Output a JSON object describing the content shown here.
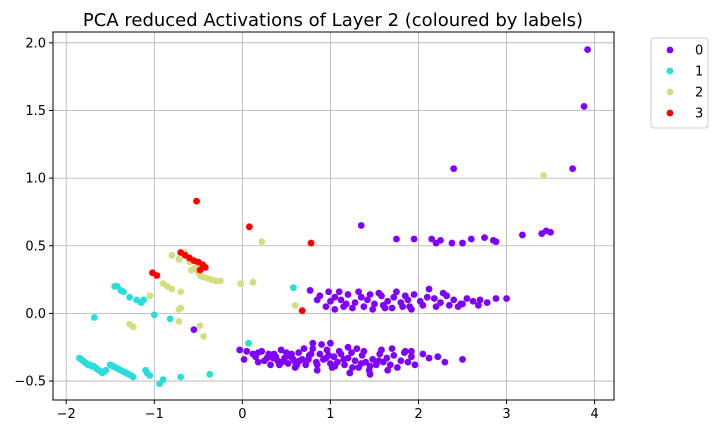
{
  "chart_data": {
    "type": "scatter",
    "title": "PCA reduced Activations of Layer 2 (coloured by labels)",
    "xlabel": "",
    "ylabel": "",
    "xlim": [
      -2.15,
      4.22
    ],
    "ylim": [
      -0.64,
      2.08
    ],
    "xticks": [
      -2,
      -1,
      0,
      1,
      2,
      3,
      4
    ],
    "yticks": [
      -0.5,
      0.0,
      0.5,
      1.0,
      1.5,
      2.0
    ],
    "xtick_labels": [
      "−2",
      "−1",
      "0",
      "1",
      "2",
      "3",
      "4"
    ],
    "ytick_labels": [
      "−0.5",
      "0.0",
      "0.5",
      "1.0",
      "1.5",
      "2.0"
    ],
    "grid": true,
    "legend_position": "outside-top-right",
    "series": [
      {
        "name": "0",
        "color": "#8000ff",
        "points": [
          [
            3.92,
            1.95
          ],
          [
            3.88,
            1.53
          ],
          [
            2.4,
            1.07
          ],
          [
            3.75,
            1.07
          ],
          [
            1.35,
            0.65
          ],
          [
            1.75,
            0.55
          ],
          [
            1.95,
            0.55
          ],
          [
            2.15,
            0.55
          ],
          [
            2.2,
            0.52
          ],
          [
            2.25,
            0.54
          ],
          [
            2.38,
            0.52
          ],
          [
            2.5,
            0.52
          ],
          [
            2.6,
            0.55
          ],
          [
            2.75,
            0.56
          ],
          [
            2.85,
            0.54
          ],
          [
            2.88,
            0.53
          ],
          [
            3.18,
            0.58
          ],
          [
            3.4,
            0.59
          ],
          [
            3.45,
            0.61
          ],
          [
            3.5,
            0.6
          ],
          [
            0.77,
            0.17
          ],
          [
            0.98,
            0.16
          ],
          [
            1.05,
            0.12
          ],
          [
            1.12,
            0.1
          ],
          [
            1.2,
            0.14
          ],
          [
            1.28,
            0.08
          ],
          [
            1.35,
            0.12
          ],
          [
            1.42,
            0.1
          ],
          [
            1.5,
            0.07
          ],
          [
            1.58,
            0.13
          ],
          [
            1.65,
            0.09
          ],
          [
            1.72,
            0.12
          ],
          [
            1.8,
            0.08
          ],
          [
            1.88,
            0.1
          ],
          [
            1.95,
            0.14
          ],
          [
            2.02,
            0.09
          ],
          [
            2.1,
            0.12
          ],
          [
            2.18,
            0.11
          ],
          [
            2.25,
            0.08
          ],
          [
            2.32,
            0.13
          ],
          [
            2.4,
            0.1
          ],
          [
            2.48,
            0.07
          ],
          [
            2.55,
            0.11
          ],
          [
            2.62,
            0.09
          ],
          [
            2.7,
            0.1
          ],
          [
            2.78,
            0.08
          ],
          [
            2.88,
            0.11
          ],
          [
            3.0,
            0.11
          ],
          [
            0.95,
            0.05
          ],
          [
            1.05,
            0.03
          ],
          [
            1.15,
            0.05
          ],
          [
            1.25,
            0.04
          ],
          [
            1.38,
            0.05
          ],
          [
            1.48,
            0.03
          ],
          [
            1.6,
            0.06
          ],
          [
            1.7,
            0.04
          ],
          [
            1.82,
            0.05
          ],
          [
            1.92,
            0.03
          ],
          [
            2.05,
            0.06
          ],
          [
            2.2,
            0.05
          ],
          [
            2.35,
            0.06
          ],
          [
            2.5,
            0.07
          ],
          [
            0.85,
            0.1
          ],
          [
            1.0,
            0.09
          ],
          [
            1.18,
            0.07
          ],
          [
            1.32,
            0.16
          ],
          [
            1.55,
            0.15
          ],
          [
            1.75,
            0.16
          ],
          [
            1.9,
            0.05
          ],
          [
            2.12,
            0.18
          ],
          [
            2.28,
            0.15
          ],
          [
            0.88,
            0.13
          ],
          [
            1.62,
            0.04
          ],
          [
            1.85,
            0.13
          ],
          [
            2.45,
            0.05
          ],
          [
            2.68,
            0.06
          ],
          [
            1.1,
            0.16
          ],
          [
            1.45,
            0.14
          ],
          [
            -0.03,
            -0.27
          ],
          [
            0.02,
            -0.34
          ],
          [
            0.12,
            -0.3
          ],
          [
            0.18,
            -0.36
          ],
          [
            0.22,
            -0.28
          ],
          [
            0.28,
            -0.33
          ],
          [
            0.32,
            -0.38
          ],
          [
            0.36,
            -0.3
          ],
          [
            0.4,
            -0.35
          ],
          [
            0.44,
            -0.27
          ],
          [
            0.48,
            -0.33
          ],
          [
            0.52,
            -0.37
          ],
          [
            0.56,
            -0.3
          ],
          [
            0.6,
            -0.36
          ],
          [
            0.64,
            -0.29
          ],
          [
            0.68,
            -0.34
          ],
          [
            0.72,
            -0.38
          ],
          [
            0.76,
            -0.31
          ],
          [
            0.8,
            -0.26
          ],
          [
            0.84,
            -0.36
          ],
          [
            0.88,
            -0.3
          ],
          [
            0.92,
            -0.34
          ],
          [
            0.96,
            -0.27
          ],
          [
            1.0,
            -0.37
          ],
          [
            1.04,
            -0.32
          ],
          [
            1.08,
            -0.36
          ],
          [
            1.12,
            -0.3
          ],
          [
            1.16,
            -0.38
          ],
          [
            1.2,
            -0.33
          ],
          [
            1.24,
            -0.29
          ],
          [
            1.28,
            -0.35
          ],
          [
            1.32,
            -0.4
          ],
          [
            1.36,
            -0.31
          ],
          [
            1.4,
            -0.36
          ],
          [
            1.44,
            -0.42
          ],
          [
            1.48,
            -0.34
          ],
          [
            1.52,
            -0.38
          ],
          [
            1.56,
            -0.3
          ],
          [
            1.6,
            -0.36
          ],
          [
            1.64,
            -0.33
          ],
          [
            1.68,
            -0.38
          ],
          [
            1.72,
            -0.31
          ],
          [
            1.76,
            -0.4
          ],
          [
            1.8,
            -0.35
          ],
          [
            1.84,
            -0.29
          ],
          [
            1.88,
            -0.36
          ],
          [
            1.92,
            -0.32
          ],
          [
            1.96,
            -0.38
          ],
          [
            2.05,
            -0.3
          ],
          [
            2.12,
            -0.33
          ],
          [
            2.22,
            -0.32
          ],
          [
            2.3,
            -0.36
          ],
          [
            2.5,
            -0.34
          ],
          [
            0.15,
            -0.32
          ],
          [
            0.25,
            -0.35
          ],
          [
            0.35,
            -0.33
          ],
          [
            0.45,
            -0.36
          ],
          [
            0.55,
            -0.32
          ],
          [
            0.65,
            -0.35
          ],
          [
            0.75,
            -0.34
          ],
          [
            0.85,
            -0.38
          ],
          [
            0.95,
            -0.33
          ],
          [
            1.05,
            -0.39
          ],
          [
            1.15,
            -0.34
          ],
          [
            1.25,
            -0.4
          ],
          [
            1.35,
            -0.37
          ],
          [
            1.45,
            -0.39
          ],
          [
            1.55,
            -0.35
          ],
          [
            1.65,
            -0.42
          ],
          [
            1.1,
            -0.28
          ],
          [
            1.3,
            -0.26
          ],
          [
            0.9,
            -0.23
          ],
          [
            0.8,
            -0.22
          ],
          [
            1.0,
            -0.22
          ],
          [
            1.2,
            -0.25
          ],
          [
            0.7,
            -0.26
          ],
          [
            0.5,
            -0.29
          ],
          [
            0.3,
            -0.3
          ],
          [
            0.6,
            -0.4
          ],
          [
            0.85,
            -0.42
          ],
          [
            1.45,
            -0.45
          ],
          [
            1.02,
            -0.4
          ],
          [
            1.22,
            -0.44
          ],
          [
            0.42,
            -0.38
          ],
          [
            0.62,
            -0.38
          ],
          [
            1.7,
            -0.26
          ],
          [
            1.85,
            -0.28
          ],
          [
            1.38,
            -0.28
          ],
          [
            0.98,
            -0.31
          ],
          [
            0.78,
            -0.3
          ],
          [
            0.58,
            -0.34
          ],
          [
            0.38,
            -0.32
          ],
          [
            0.18,
            -0.29
          ],
          [
            -0.55,
            -0.12
          ],
          [
            0.05,
            -0.28
          ],
          [
            1.92,
            -0.28
          ],
          [
            1.58,
            -0.27
          ]
        ]
      },
      {
        "name": "1",
        "color": "#2adddd",
        "points": [
          [
            -1.45,
            0.2
          ],
          [
            -1.42,
            0.2
          ],
          [
            -1.38,
            0.17
          ],
          [
            -1.35,
            0.16
          ],
          [
            -1.28,
            0.12
          ],
          [
            -1.2,
            0.1
          ],
          [
            -1.12,
            0.1
          ],
          [
            -1.15,
            0.08
          ],
          [
            -1.68,
            -0.03
          ],
          [
            -1.0,
            -0.01
          ],
          [
            -0.82,
            -0.04
          ],
          [
            0.58,
            0.19
          ],
          [
            0.07,
            -0.22
          ],
          [
            -0.37,
            -0.45
          ],
          [
            -0.7,
            -0.47
          ],
          [
            -0.94,
            -0.52
          ],
          [
            -0.9,
            -0.49
          ],
          [
            -1.08,
            -0.44
          ],
          [
            -1.85,
            -0.33
          ],
          [
            -1.83,
            -0.34
          ],
          [
            -1.81,
            -0.35
          ],
          [
            -1.79,
            -0.36
          ],
          [
            -1.77,
            -0.37
          ],
          [
            -1.75,
            -0.38
          ],
          [
            -1.73,
            -0.38
          ],
          [
            -1.71,
            -0.39
          ],
          [
            -1.69,
            -0.39
          ],
          [
            -1.67,
            -0.4
          ],
          [
            -1.65,
            -0.41
          ],
          [
            -1.63,
            -0.42
          ],
          [
            -1.61,
            -0.43
          ],
          [
            -1.59,
            -0.44
          ],
          [
            -1.57,
            -0.43
          ],
          [
            -1.55,
            -0.42
          ],
          [
            -1.5,
            -0.38
          ],
          [
            -1.47,
            -0.39
          ],
          [
            -1.44,
            -0.4
          ],
          [
            -1.41,
            -0.41
          ],
          [
            -1.38,
            -0.42
          ],
          [
            -1.35,
            -0.43
          ],
          [
            -1.32,
            -0.44
          ],
          [
            -1.29,
            -0.45
          ],
          [
            -1.26,
            -0.46
          ],
          [
            -1.1,
            -0.42
          ],
          [
            -1.05,
            -0.46
          ],
          [
            -1.24,
            -0.47
          ]
        ]
      },
      {
        "name": "2",
        "color": "#d4dd80",
        "points": [
          [
            -0.8,
            0.43
          ],
          [
            -0.72,
            0.4
          ],
          [
            -0.65,
            0.45
          ],
          [
            -0.6,
            0.38
          ],
          [
            -0.55,
            0.33
          ],
          [
            -0.5,
            0.3
          ],
          [
            -0.48,
            0.28
          ],
          [
            -0.45,
            0.27
          ],
          [
            -0.4,
            0.26
          ],
          [
            -0.35,
            0.25
          ],
          [
            -0.3,
            0.24
          ],
          [
            -0.25,
            0.24
          ],
          [
            -0.58,
            0.32
          ],
          [
            -0.52,
            0.35
          ],
          [
            -0.9,
            0.22
          ],
          [
            -0.85,
            0.2
          ],
          [
            -0.8,
            0.18
          ],
          [
            -0.7,
            0.16
          ],
          [
            -1.05,
            0.13
          ],
          [
            -1.28,
            -0.08
          ],
          [
            -1.24,
            -0.1
          ],
          [
            -0.7,
            0.04
          ],
          [
            -0.72,
            0.03
          ],
          [
            -0.72,
            -0.06
          ],
          [
            -0.48,
            -0.09
          ],
          [
            -0.44,
            -0.17
          ],
          [
            -0.02,
            0.22
          ],
          [
            0.12,
            0.23
          ],
          [
            0.22,
            0.53
          ],
          [
            0.6,
            0.06
          ],
          [
            3.42,
            1.02
          ]
        ]
      },
      {
        "name": "3",
        "color": "#ff0000",
        "points": [
          [
            -0.52,
            0.83
          ],
          [
            0.08,
            0.64
          ],
          [
            0.78,
            0.52
          ],
          [
            -1.02,
            0.3
          ],
          [
            -0.97,
            0.28
          ],
          [
            -0.7,
            0.45
          ],
          [
            -0.65,
            0.43
          ],
          [
            -0.6,
            0.41
          ],
          [
            -0.55,
            0.39
          ],
          [
            -0.5,
            0.38
          ],
          [
            -0.45,
            0.36
          ],
          [
            -0.42,
            0.34
          ],
          [
            -0.48,
            0.32
          ],
          [
            0.68,
            0.02
          ]
        ]
      }
    ]
  }
}
